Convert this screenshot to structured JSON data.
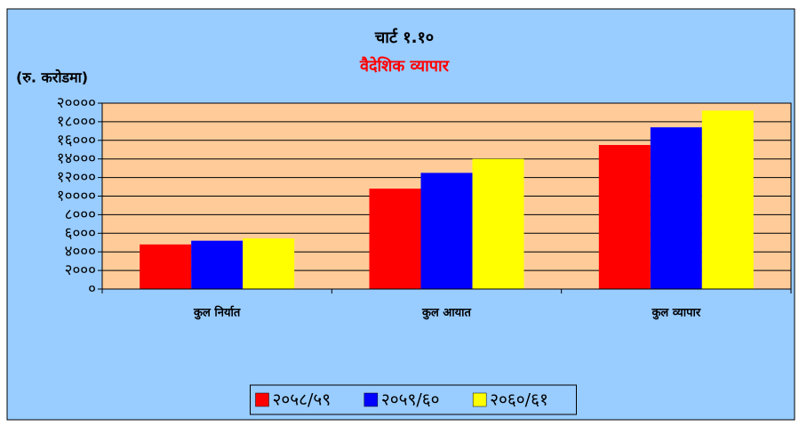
{
  "chart_data": {
    "type": "bar",
    "title": "चार्ट १.१०",
    "subtitle": "वैदेशिक व्यापार",
    "y_label": "(रु. करोडमा)",
    "categories": [
      "कुल निर्यात",
      "कुल आयात",
      "कुल व्यापार"
    ],
    "series": [
      {
        "name": "२०५८/५९",
        "color": "#ff0000",
        "values": [
          4800,
          10800,
          15500
        ]
      },
      {
        "name": "२०५९/६०",
        "color": "#0000ff",
        "values": [
          5200,
          12500,
          17400
        ]
      },
      {
        "name": "२०६०/६१",
        "color": "#ffff00",
        "values": [
          5450,
          14000,
          19200
        ]
      }
    ],
    "ylim": [
      0,
      20000
    ],
    "yticks": [
      {
        "value": 0,
        "label": "०"
      },
      {
        "value": 2000,
        "label": "२०००"
      },
      {
        "value": 4000,
        "label": "४०००"
      },
      {
        "value": 6000,
        "label": "६०००"
      },
      {
        "value": 8000,
        "label": "८०००"
      },
      {
        "value": 10000,
        "label": "१००००"
      },
      {
        "value": 12000,
        "label": "१२०००"
      },
      {
        "value": 14000,
        "label": "१४०००"
      },
      {
        "value": 16000,
        "label": "१६०००"
      },
      {
        "value": 18000,
        "label": "१८०००"
      },
      {
        "value": 20000,
        "label": "२००००"
      }
    ],
    "grid": true,
    "legend": "bottom"
  }
}
